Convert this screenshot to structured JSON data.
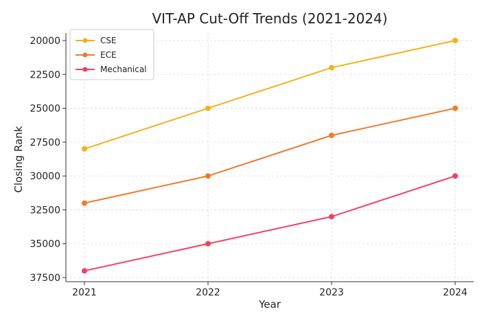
{
  "chart_data": {
    "type": "line",
    "title": "VIT-AP Cut-Off Trends (2021-2024)",
    "xlabel": "Year",
    "ylabel": "Closing Rank",
    "categories": [
      "2021",
      "2022",
      "2023",
      "2024"
    ],
    "y_ticks": [
      20000,
      22500,
      25000,
      27500,
      30000,
      32500,
      35000,
      37500
    ],
    "ylim": [
      20000,
      37500
    ],
    "y_inverted": true,
    "grid": true,
    "legend_position": "top-left",
    "series": [
      {
        "name": "CSE",
        "color": "#f4b11c",
        "values": [
          28000,
          25000,
          22000,
          20000
        ]
      },
      {
        "name": "ECE",
        "color": "#f07a2c",
        "values": [
          32000,
          30000,
          27000,
          25000
        ]
      },
      {
        "name": "Mechanical",
        "color": "#ef4263",
        "values": [
          37000,
          35000,
          33000,
          30000
        ]
      }
    ]
  }
}
